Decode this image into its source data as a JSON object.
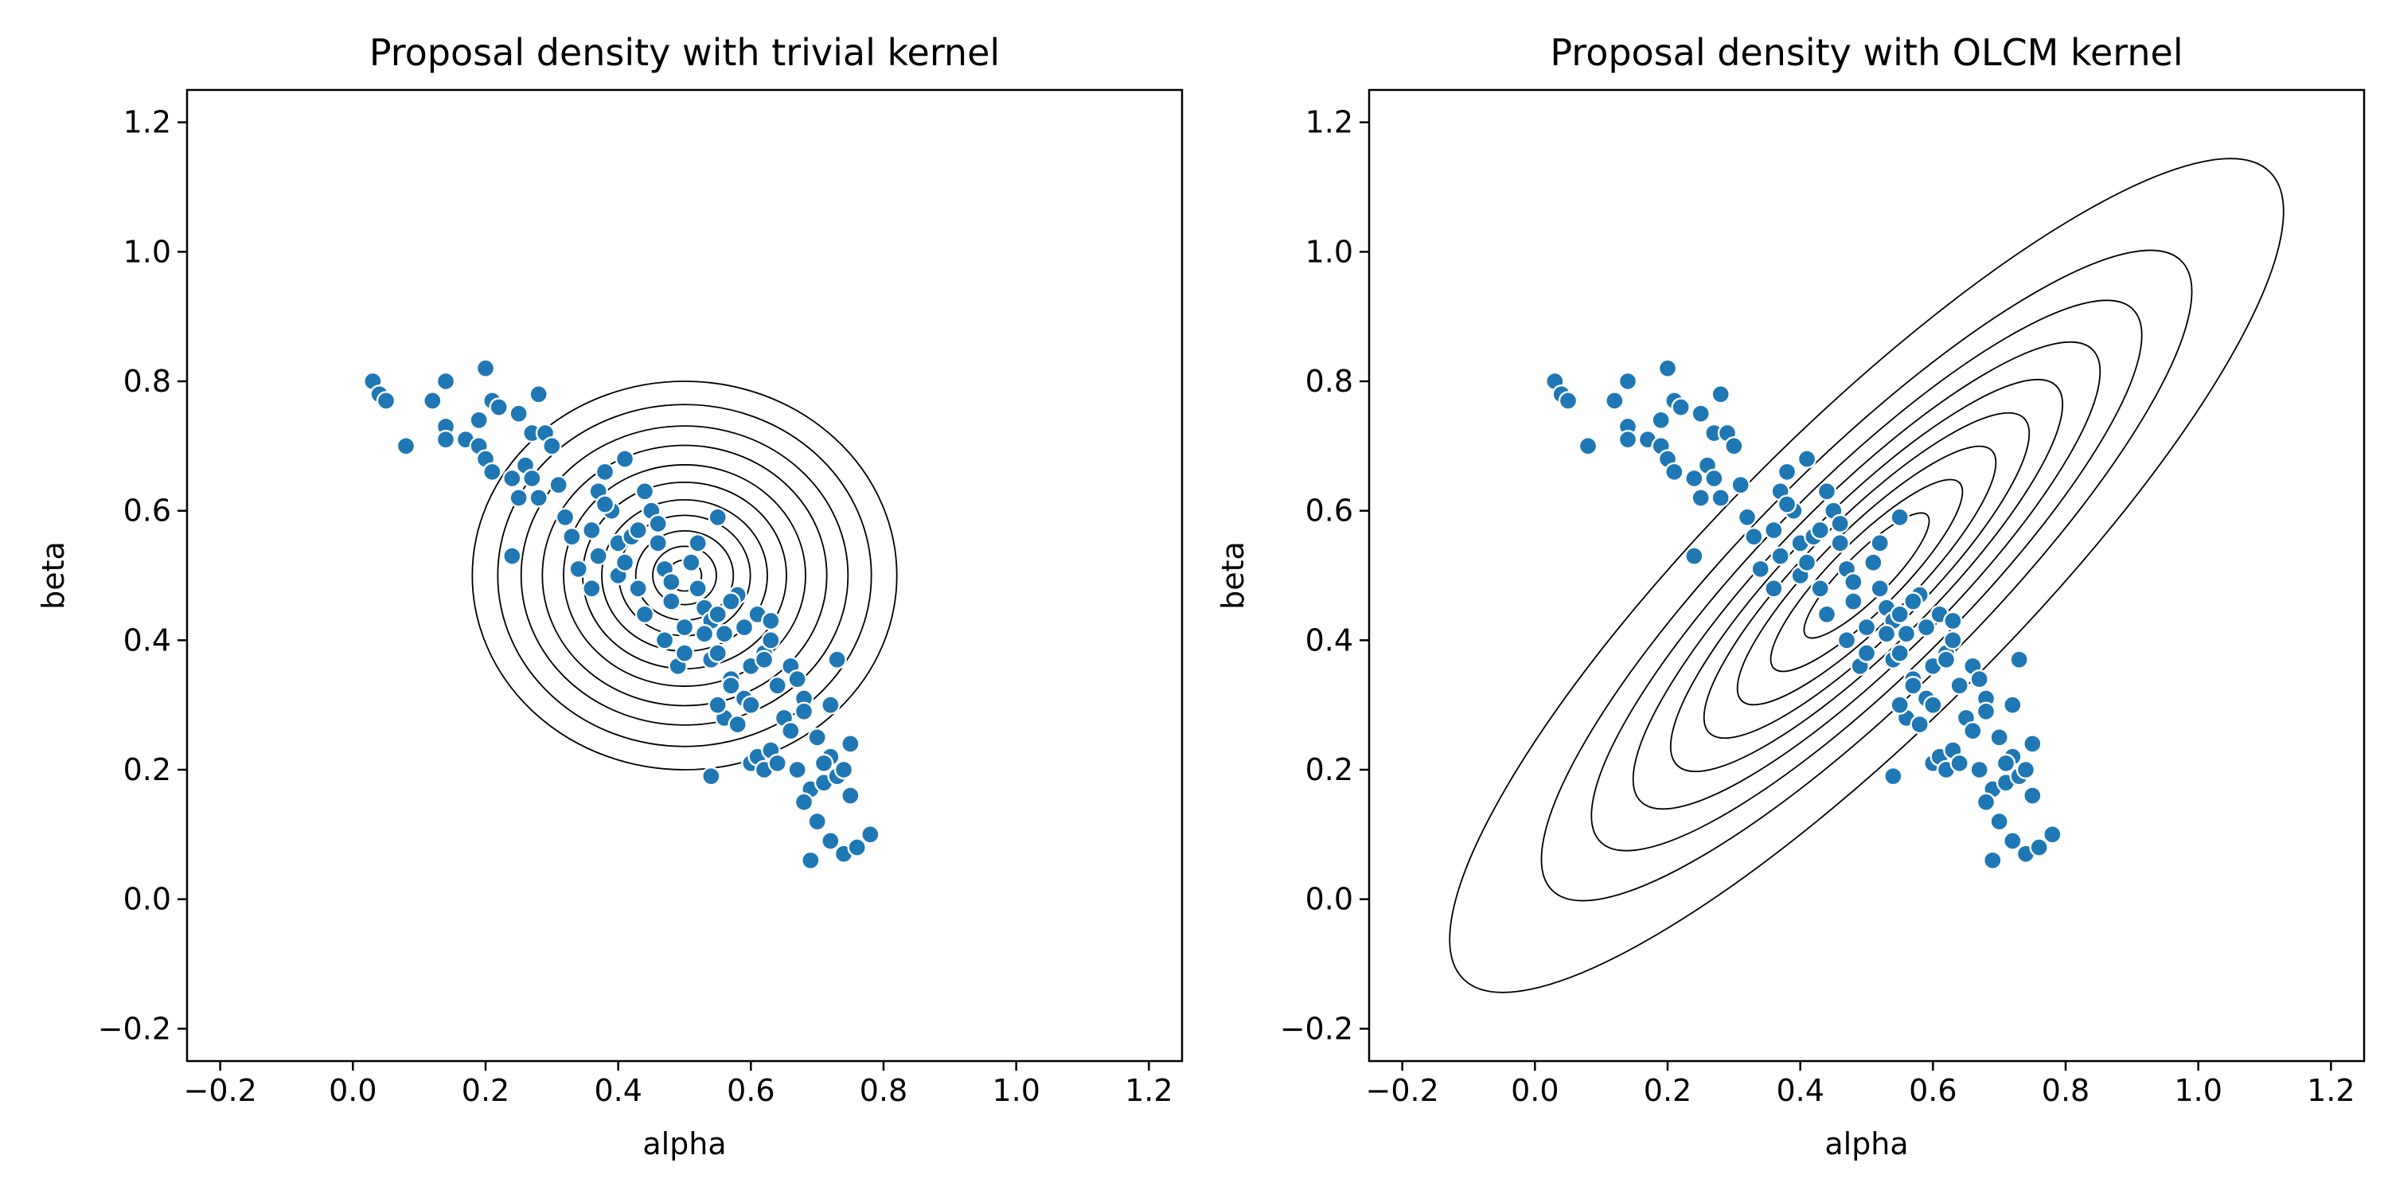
{
  "figure": {
    "background": "#ffffff",
    "point_color": "#1f77b4",
    "contour_color": "#000000"
  },
  "chart_data": [
    {
      "type": "scatter",
      "title": "Proposal density with trivial kernel",
      "xlabel": "alpha",
      "ylabel": "beta",
      "xlim": [
        -0.25,
        1.25
      ],
      "ylim": [
        -0.25,
        1.25
      ],
      "xticks": [
        -0.2,
        0.0,
        0.2,
        0.4,
        0.6,
        0.8,
        1.0,
        1.2
      ],
      "yticks": [
        -0.2,
        0.0,
        0.2,
        0.4,
        0.6,
        0.8,
        1.0,
        1.2
      ],
      "xtick_labels": [
        "−0.2",
        "0.0",
        "0.2",
        "0.4",
        "0.6",
        "0.8",
        "1.0",
        "1.2"
      ],
      "ytick_labels": [
        "−0.2",
        "0.0",
        "0.2",
        "0.4",
        "0.6",
        "0.8",
        "1.0",
        "1.2"
      ],
      "grid": false,
      "series": [
        {
          "kind": "points",
          "color": "#1f77b4",
          "x": [
            0.03,
            0.04,
            0.05,
            0.08,
            0.12,
            0.14,
            0.14,
            0.14,
            0.17,
            0.19,
            0.2,
            0.21,
            0.19,
            0.2,
            0.21,
            0.22,
            0.24,
            0.25,
            0.26,
            0.27,
            0.28,
            0.29,
            0.3,
            0.24,
            0.25,
            0.27,
            0.28,
            0.31,
            0.32,
            0.33,
            0.34,
            0.36,
            0.36,
            0.37,
            0.38,
            0.39,
            0.4,
            0.41,
            0.37,
            0.38,
            0.4,
            0.41,
            0.42,
            0.43,
            0.44,
            0.45,
            0.46,
            0.47,
            0.48,
            0.43,
            0.44,
            0.46,
            0.47,
            0.48,
            0.5,
            0.51,
            0.52,
            0.53,
            0.54,
            0.55,
            0.49,
            0.5,
            0.52,
            0.53,
            0.54,
            0.55,
            0.56,
            0.57,
            0.58,
            0.59,
            0.6,
            0.61,
            0.62,
            0.56,
            0.57,
            0.58,
            0.59,
            0.6,
            0.62,
            0.63,
            0.64,
            0.65,
            0.66,
            0.67,
            0.68,
            0.6,
            0.61,
            0.62,
            0.63,
            0.64,
            0.66,
            0.67,
            0.68,
            0.69,
            0.7,
            0.71,
            0.72,
            0.73,
            0.74,
            0.75,
            0.68,
            0.7,
            0.72,
            0.74,
            0.75,
            0.76,
            0.78,
            0.69,
            0.71,
            0.72,
            0.73,
            0.54,
            0.55,
            0.57,
            0.55,
            0.63
          ],
          "y": [
            0.8,
            0.78,
            0.77,
            0.7,
            0.77,
            0.8,
            0.73,
            0.71,
            0.71,
            0.74,
            0.82,
            0.77,
            0.7,
            0.68,
            0.66,
            0.76,
            0.65,
            0.75,
            0.67,
            0.72,
            0.78,
            0.72,
            0.7,
            0.53,
            0.62,
            0.65,
            0.62,
            0.64,
            0.59,
            0.56,
            0.51,
            0.48,
            0.57,
            0.63,
            0.66,
            0.6,
            0.55,
            0.68,
            0.53,
            0.61,
            0.5,
            0.52,
            0.56,
            0.48,
            0.63,
            0.6,
            0.55,
            0.51,
            0.46,
            0.57,
            0.44,
            0.58,
            0.4,
            0.49,
            0.42,
            0.52,
            0.55,
            0.45,
            0.43,
            0.59,
            0.36,
            0.38,
            0.48,
            0.41,
            0.37,
            0.44,
            0.41,
            0.34,
            0.47,
            0.42,
            0.36,
            0.44,
            0.38,
            0.28,
            0.33,
            0.27,
            0.31,
            0.3,
            0.37,
            0.43,
            0.33,
            0.28,
            0.36,
            0.34,
            0.31,
            0.21,
            0.22,
            0.2,
            0.23,
            0.21,
            0.26,
            0.2,
            0.29,
            0.17,
            0.25,
            0.18,
            0.22,
            0.19,
            0.2,
            0.24,
            0.15,
            0.12,
            0.09,
            0.07,
            0.16,
            0.08,
            0.1,
            0.06,
            0.21,
            0.3,
            0.37,
            0.19,
            0.3,
            0.46,
            0.38,
            0.4
          ]
        },
        {
          "kind": "contours",
          "center": [
            0.5,
            0.5
          ],
          "semi_axes": [
            0.32,
            0.3
          ],
          "levels": [
            1.0,
            0.88,
            0.77,
            0.67,
            0.57,
            0.48,
            0.39,
            0.31,
            0.23,
            0.15,
            0.08
          ],
          "rotation_deg": 0
        }
      ]
    },
    {
      "type": "scatter",
      "title": "Proposal density with OLCM kernel",
      "xlabel": "alpha",
      "ylabel": "beta",
      "xlim": [
        -0.25,
        1.25
      ],
      "ylim": [
        -0.25,
        1.25
      ],
      "xticks": [
        -0.2,
        0.0,
        0.2,
        0.4,
        0.6,
        0.8,
        1.0,
        1.2
      ],
      "yticks": [
        -0.2,
        0.0,
        0.2,
        0.4,
        0.6,
        0.8,
        1.0,
        1.2
      ],
      "xtick_labels": [
        "−0.2",
        "0.0",
        "0.2",
        "0.4",
        "0.6",
        "0.8",
        "1.0",
        "1.2"
      ],
      "ytick_labels": [
        "−0.2",
        "0.0",
        "0.2",
        "0.4",
        "0.6",
        "0.8",
        "1.0",
        "1.2"
      ],
      "grid": false,
      "series": [
        {
          "kind": "points",
          "color": "#1f77b4",
          "x": [
            0.03,
            0.04,
            0.05,
            0.08,
            0.12,
            0.14,
            0.14,
            0.14,
            0.17,
            0.19,
            0.2,
            0.21,
            0.19,
            0.2,
            0.21,
            0.22,
            0.24,
            0.25,
            0.26,
            0.27,
            0.28,
            0.29,
            0.3,
            0.24,
            0.25,
            0.27,
            0.28,
            0.31,
            0.32,
            0.33,
            0.34,
            0.36,
            0.36,
            0.37,
            0.38,
            0.39,
            0.4,
            0.41,
            0.37,
            0.38,
            0.4,
            0.41,
            0.42,
            0.43,
            0.44,
            0.45,
            0.46,
            0.47,
            0.48,
            0.43,
            0.44,
            0.46,
            0.47,
            0.48,
            0.5,
            0.51,
            0.52,
            0.53,
            0.54,
            0.55,
            0.49,
            0.5,
            0.52,
            0.53,
            0.54,
            0.55,
            0.56,
            0.57,
            0.58,
            0.59,
            0.6,
            0.61,
            0.62,
            0.56,
            0.57,
            0.58,
            0.59,
            0.6,
            0.62,
            0.63,
            0.64,
            0.65,
            0.66,
            0.67,
            0.68,
            0.6,
            0.61,
            0.62,
            0.63,
            0.64,
            0.66,
            0.67,
            0.68,
            0.69,
            0.7,
            0.71,
            0.72,
            0.73,
            0.74,
            0.75,
            0.68,
            0.7,
            0.72,
            0.74,
            0.75,
            0.76,
            0.78,
            0.69,
            0.71,
            0.72,
            0.73,
            0.54,
            0.55,
            0.57,
            0.55,
            0.63
          ],
          "y": [
            0.8,
            0.78,
            0.77,
            0.7,
            0.77,
            0.8,
            0.73,
            0.71,
            0.71,
            0.74,
            0.82,
            0.77,
            0.7,
            0.68,
            0.66,
            0.76,
            0.65,
            0.75,
            0.67,
            0.72,
            0.78,
            0.72,
            0.7,
            0.53,
            0.62,
            0.65,
            0.62,
            0.64,
            0.59,
            0.56,
            0.51,
            0.48,
            0.57,
            0.63,
            0.66,
            0.6,
            0.55,
            0.68,
            0.53,
            0.61,
            0.5,
            0.52,
            0.56,
            0.48,
            0.63,
            0.6,
            0.55,
            0.51,
            0.46,
            0.57,
            0.44,
            0.58,
            0.4,
            0.49,
            0.42,
            0.52,
            0.55,
            0.45,
            0.43,
            0.59,
            0.36,
            0.38,
            0.48,
            0.41,
            0.37,
            0.44,
            0.41,
            0.34,
            0.47,
            0.42,
            0.36,
            0.44,
            0.38,
            0.28,
            0.33,
            0.27,
            0.31,
            0.3,
            0.37,
            0.43,
            0.33,
            0.28,
            0.36,
            0.34,
            0.31,
            0.21,
            0.22,
            0.2,
            0.23,
            0.21,
            0.26,
            0.2,
            0.29,
            0.17,
            0.25,
            0.18,
            0.22,
            0.19,
            0.2,
            0.24,
            0.15,
            0.12,
            0.09,
            0.07,
            0.16,
            0.08,
            0.1,
            0.06,
            0.21,
            0.3,
            0.37,
            0.19,
            0.3,
            0.46,
            0.38,
            0.4
          ]
        },
        {
          "kind": "contours",
          "center": [
            0.5,
            0.5
          ],
          "semi_axes": [
            0.86,
            0.23
          ],
          "levels": [
            1.0,
            0.78,
            0.66,
            0.56,
            0.47,
            0.39,
            0.31,
            0.23,
            0.15
          ],
          "rotation_deg": -45
        }
      ]
    }
  ]
}
